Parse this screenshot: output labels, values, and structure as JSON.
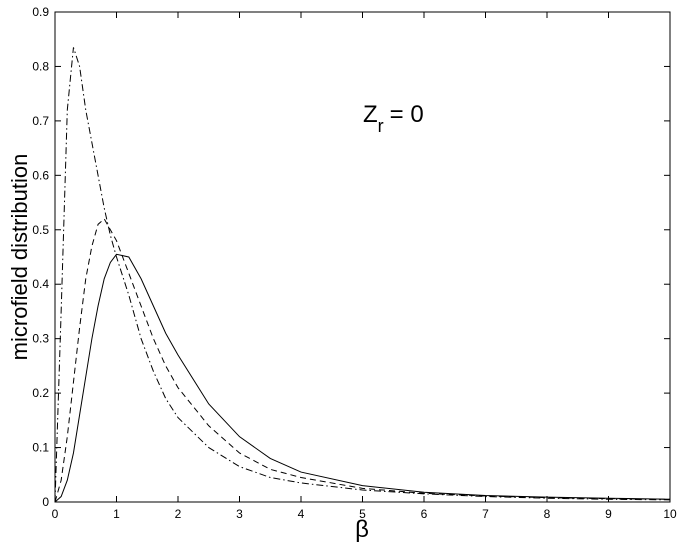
{
  "chart_data": {
    "type": "line",
    "x_label": "β",
    "y_label": "microfield distribution",
    "annotation": {
      "base": "Z",
      "sub": "r",
      "rest": "= 0"
    },
    "x": [
      0,
      0.1,
      0.2,
      0.3,
      0.4,
      0.5,
      0.6,
      0.7,
      0.8,
      0.9,
      1.0,
      1.2,
      1.4,
      1.6,
      1.8,
      2.0,
      2.5,
      3,
      3.5,
      4,
      5,
      6,
      7,
      8,
      9,
      10
    ],
    "series": [
      {
        "color": "#000000",
        "dash": "solid",
        "values": [
          0,
          0.01,
          0.04,
          0.09,
          0.16,
          0.23,
          0.3,
          0.36,
          0.41,
          0.44,
          0.455,
          0.45,
          0.41,
          0.36,
          0.31,
          0.27,
          0.18,
          0.12,
          0.08,
          0.055,
          0.03,
          0.018,
          0.012,
          0.009,
          0.007,
          0.005
        ]
      },
      {
        "color": "#000000",
        "dash": "dashed",
        "values": [
          0,
          0.04,
          0.12,
          0.22,
          0.32,
          0.41,
          0.47,
          0.51,
          0.52,
          0.5,
          0.48,
          0.42,
          0.36,
          0.3,
          0.25,
          0.21,
          0.14,
          0.09,
          0.06,
          0.045,
          0.025,
          0.016,
          0.011,
          0.008,
          0.006,
          0.005
        ]
      },
      {
        "color": "#000000",
        "dash": "dashdot",
        "values": [
          0,
          0.35,
          0.72,
          0.835,
          0.8,
          0.72,
          0.66,
          0.6,
          0.54,
          0.49,
          0.45,
          0.38,
          0.3,
          0.24,
          0.19,
          0.155,
          0.1,
          0.065,
          0.045,
          0.035,
          0.022,
          0.015,
          0.01,
          0.007,
          0.005,
          0.004
        ]
      }
    ],
    "xlim": [
      0,
      10
    ],
    "ylim": [
      0,
      0.9
    ],
    "xticks": [
      0,
      1,
      2,
      3,
      4,
      5,
      6,
      7,
      8,
      9,
      10
    ],
    "yticks": [
      0,
      0.1,
      0.2,
      0.3,
      0.4,
      0.5,
      0.6,
      0.7,
      0.8,
      0.9
    ]
  }
}
